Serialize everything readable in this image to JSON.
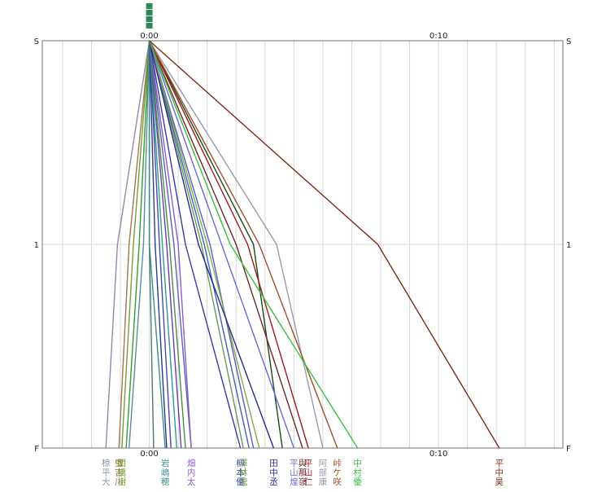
{
  "chart_data": {
    "type": "line",
    "title": "",
    "xlabel": "",
    "ylabel": "",
    "x_unit": "minutes",
    "x_range_min": [
      -3.7,
      14.3
    ],
    "x_gridline_step_min": 1,
    "x_tick_labels": [
      {
        "value": 0,
        "label": "0:00"
      },
      {
        "value": 10,
        "label": "0:10"
      }
    ],
    "y_categories": [
      {
        "key": "S",
        "label": "S"
      },
      {
        "key": "1",
        "label": "1"
      },
      {
        "key": "F",
        "label": "F"
      }
    ],
    "top_marker_color": "#2e8b57",
    "series": [
      {
        "color": "#8c8ca8",
        "values": [
          0,
          -1.1,
          -1.5
        ],
        "label": [
          "椋",
          "平",
          "大"
        ]
      },
      {
        "color": "#a07850",
        "values": [
          0,
          -0.7,
          -1.05
        ],
        "label": [
          "璧",
          "吉",
          "川"
        ]
      },
      {
        "color": "#7a9a3a",
        "values": [
          0,
          -0.55,
          -0.95
        ],
        "label": [
          "閏",
          "橋",
          "樹"
        ]
      },
      {
        "color": "#2f9f2f",
        "values": [
          0,
          -0.35,
          -0.8
        ],
        "label": [
          "",
          "",
          ""
        ]
      },
      {
        "color": "#5c8c9c",
        "values": [
          0,
          -0.2,
          -0.7
        ],
        "label": [
          "",
          "",
          ""
        ]
      },
      {
        "color": "#4a7a6a",
        "values": [
          0,
          0.0,
          0.15
        ],
        "label": [
          "",
          "",
          ""
        ]
      },
      {
        "color": "#3c8c8c",
        "values": [
          0,
          0.0,
          0.55
        ],
        "label": [
          "岩",
          "嶋",
          "穂"
        ]
      },
      {
        "color": "#283c8c",
        "values": [
          0,
          0.2,
          0.6
        ],
        "label": [
          "",
          "",
          ""
        ]
      },
      {
        "color": "#4a4a9c",
        "values": [
          0,
          0.35,
          0.75
        ],
        "label": [
          "",
          "",
          ""
        ]
      },
      {
        "color": "#2a9a9a",
        "values": [
          0,
          0.45,
          0.95
        ],
        "label": [
          "",
          "",
          ""
        ]
      },
      {
        "color": "#6a3ca8",
        "values": [
          0,
          0.6,
          1.1
        ],
        "label": [
          "",
          "",
          ""
        ]
      },
      {
        "color": "#4a8c4a",
        "values": [
          0,
          0.7,
          1.25
        ],
        "label": [
          "",
          "",
          ""
        ]
      },
      {
        "color": "#5a64b4",
        "values": [
          0,
          0.85,
          1.45
        ],
        "label": [
          "",
          "",
          ""
        ]
      },
      {
        "color": "#8c5cc8",
        "values": [
          0,
          1.0,
          1.45
        ],
        "label": [
          "畑",
          "内",
          "太"
        ]
      },
      {
        "color": "#3a3aa8",
        "values": [
          0,
          1.25,
          3.15
        ],
        "label": [
          "柳",
          "本",
          "優"
        ]
      },
      {
        "color": "#6a9a5a",
        "values": [
          0,
          1.8,
          3.25
        ],
        "label": [
          "澤",
          "林",
          "龍"
        ]
      },
      {
        "color": "#3c64b4",
        "values": [
          0,
          1.9,
          3.45
        ],
        "label": [
          "",
          "",
          ""
        ]
      },
      {
        "color": "#5a5ac8",
        "values": [
          0,
          2.1,
          3.6
        ],
        "label": [
          "",
          "",
          ""
        ]
      },
      {
        "color": "#7ab04a",
        "values": [
          0,
          2.0,
          3.8
        ],
        "label": [
          "",
          "",
          ""
        ]
      },
      {
        "color": "#2a2a8c",
        "values": [
          0,
          1.7,
          4.3
        ],
        "label": [
          "田",
          "中",
          "丞"
        ]
      },
      {
        "color": "#1a4a1a",
        "values": [
          0,
          3.6,
          4.6
        ],
        "label": [
          "",
          "",
          ""
        ]
      },
      {
        "color": "#6a6ad0",
        "values": [
          0,
          2.5,
          5.0
        ],
        "label": [
          "平",
          "山",
          "煌"
        ]
      },
      {
        "color": "#6a2a2a",
        "values": [
          0,
          3.0,
          5.3
        ],
        "label": [
          "與",
          "那",
          "嶺"
        ]
      },
      {
        "color": "#a01a1a",
        "values": [
          0,
          3.4,
          5.5
        ],
        "label": [
          "平",
          "山",
          "仁"
        ]
      },
      {
        "color": "#9a9aaa",
        "values": [
          0,
          4.4,
          6.0
        ],
        "label": [
          "阿",
          "部",
          "康"
        ]
      },
      {
        "color": "#a0502a",
        "values": [
          0,
          3.8,
          6.5
        ],
        "label": [
          "峠",
          "ケ",
          "咲"
        ]
      },
      {
        "color": "#3cc03c",
        "values": [
          0,
          2.8,
          7.2
        ],
        "label": [
          "中",
          "村",
          "優"
        ]
      },
      {
        "color": "#7a2e1a",
        "values": [
          0,
          7.9,
          12.1
        ],
        "label": [
          "平",
          "中",
          "昊"
        ]
      }
    ]
  }
}
